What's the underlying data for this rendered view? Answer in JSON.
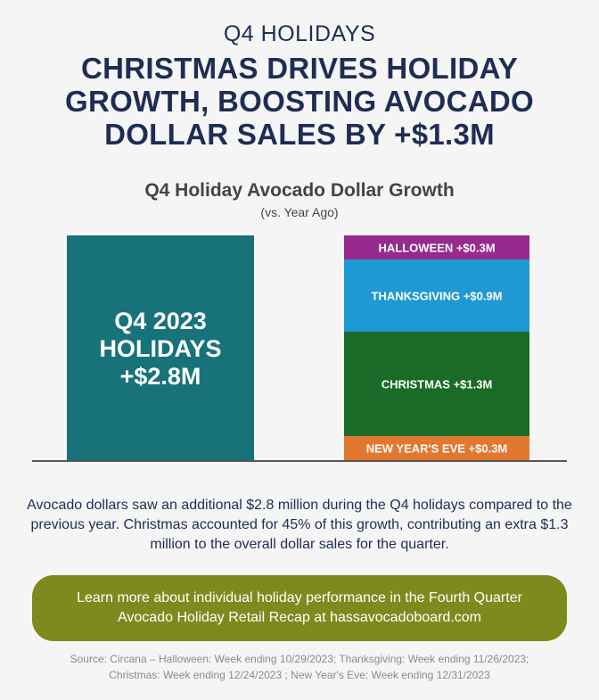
{
  "header": {
    "kicker": "Q4 HOLIDAYS",
    "headline_lines": [
      "CHRISTMAS DRIVES HOLIDAY",
      "GROWTH, BOOSTING AVOCADO",
      "DOLLAR SALES BY +$1.3M"
    ]
  },
  "chart_data": {
    "type": "bar",
    "title": "Q4 Holiday Avocado Dollar Growth",
    "subtitle": "(vs. Year Ago)",
    "total": {
      "label_lines": [
        "Q4 2023",
        "HOLIDAYS",
        "+$2.8M"
      ],
      "value": 2.8,
      "color": "#17727a"
    },
    "stack": [
      {
        "label": "NEW YEAR'S EVE +$0.3M",
        "value": 0.3,
        "color": "#e2772f"
      },
      {
        "label": "CHRISTMAS +$1.3M",
        "value": 1.3,
        "color": "#1a6b27"
      },
      {
        "label": "THANKSGIVING +$0.9M",
        "value": 0.9,
        "color": "#1f99d3"
      },
      {
        "label": "HALLOWEEN +$0.3M",
        "value": 0.3,
        "color": "#962a8d"
      }
    ],
    "grid": false,
    "legend": "none"
  },
  "body_text": "Avocado dollars saw an additional $2.8 million during the Q4 holidays compared to the previous year. Christmas accounted for 45% of this growth, contributing an extra $1.3 million to the overall dollar sales for the quarter.",
  "cta": {
    "line1": "Learn more about individual holiday performance in the Fourth Quarter",
    "line2": "Avocado Holiday Retail Recap at hassavocadoboard.com"
  },
  "source": {
    "line1": "Source: Circana – Halloween: Week ending 10/29/2023; Thanksgiving: Week ending 11/26/2023;",
    "line2": "Christmas: Week ending 12/24/2023 ; New Year's Eve: Week ending 12/31/2023"
  },
  "colors": {
    "navy": "#1e2d54",
    "olive": "#7d8b1e"
  }
}
